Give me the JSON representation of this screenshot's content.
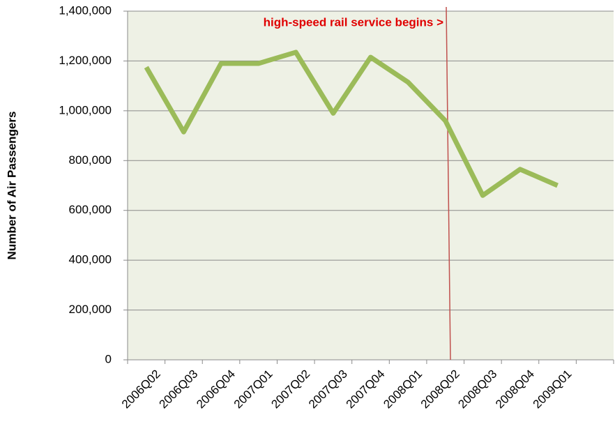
{
  "chart_data": {
    "type": "line",
    "y_label": "Number of Air Passengers",
    "annotation": "high-speed rail service begins >",
    "categories": [
      "2006Q02",
      "2006Q03",
      "2006Q04",
      "2007Q01",
      "2007Q02",
      "2007Q03",
      "2007Q04",
      "2008Q01",
      "2008Q02",
      "2008Q03",
      "2008Q04",
      "2009Q01",
      null
    ],
    "series": [
      {
        "name": "Air Passengers",
        "color": "#9bbb59",
        "values": [
          1175000,
          915000,
          1190000,
          1190000,
          1235000,
          990000,
          1215000,
          1115000,
          960000,
          660000,
          765000,
          700000,
          null
        ]
      }
    ],
    "ylim": [
      0,
      1400000
    ],
    "yticks": [
      0,
      {
        "value": 200000,
        "label": "200,000"
      },
      {
        "value": 400000,
        "label": "400,000"
      },
      {
        "value": 600000,
        "label": "600,000"
      },
      {
        "value": 800000,
        "label": "800,000"
      },
      {
        "value": 1000000,
        "label": "1,000,000"
      },
      {
        "value": 1200000,
        "label": "1,200,000"
      },
      {
        "value": 1400000,
        "label": "1,400,000"
      }
    ],
    "grid": true
  }
}
